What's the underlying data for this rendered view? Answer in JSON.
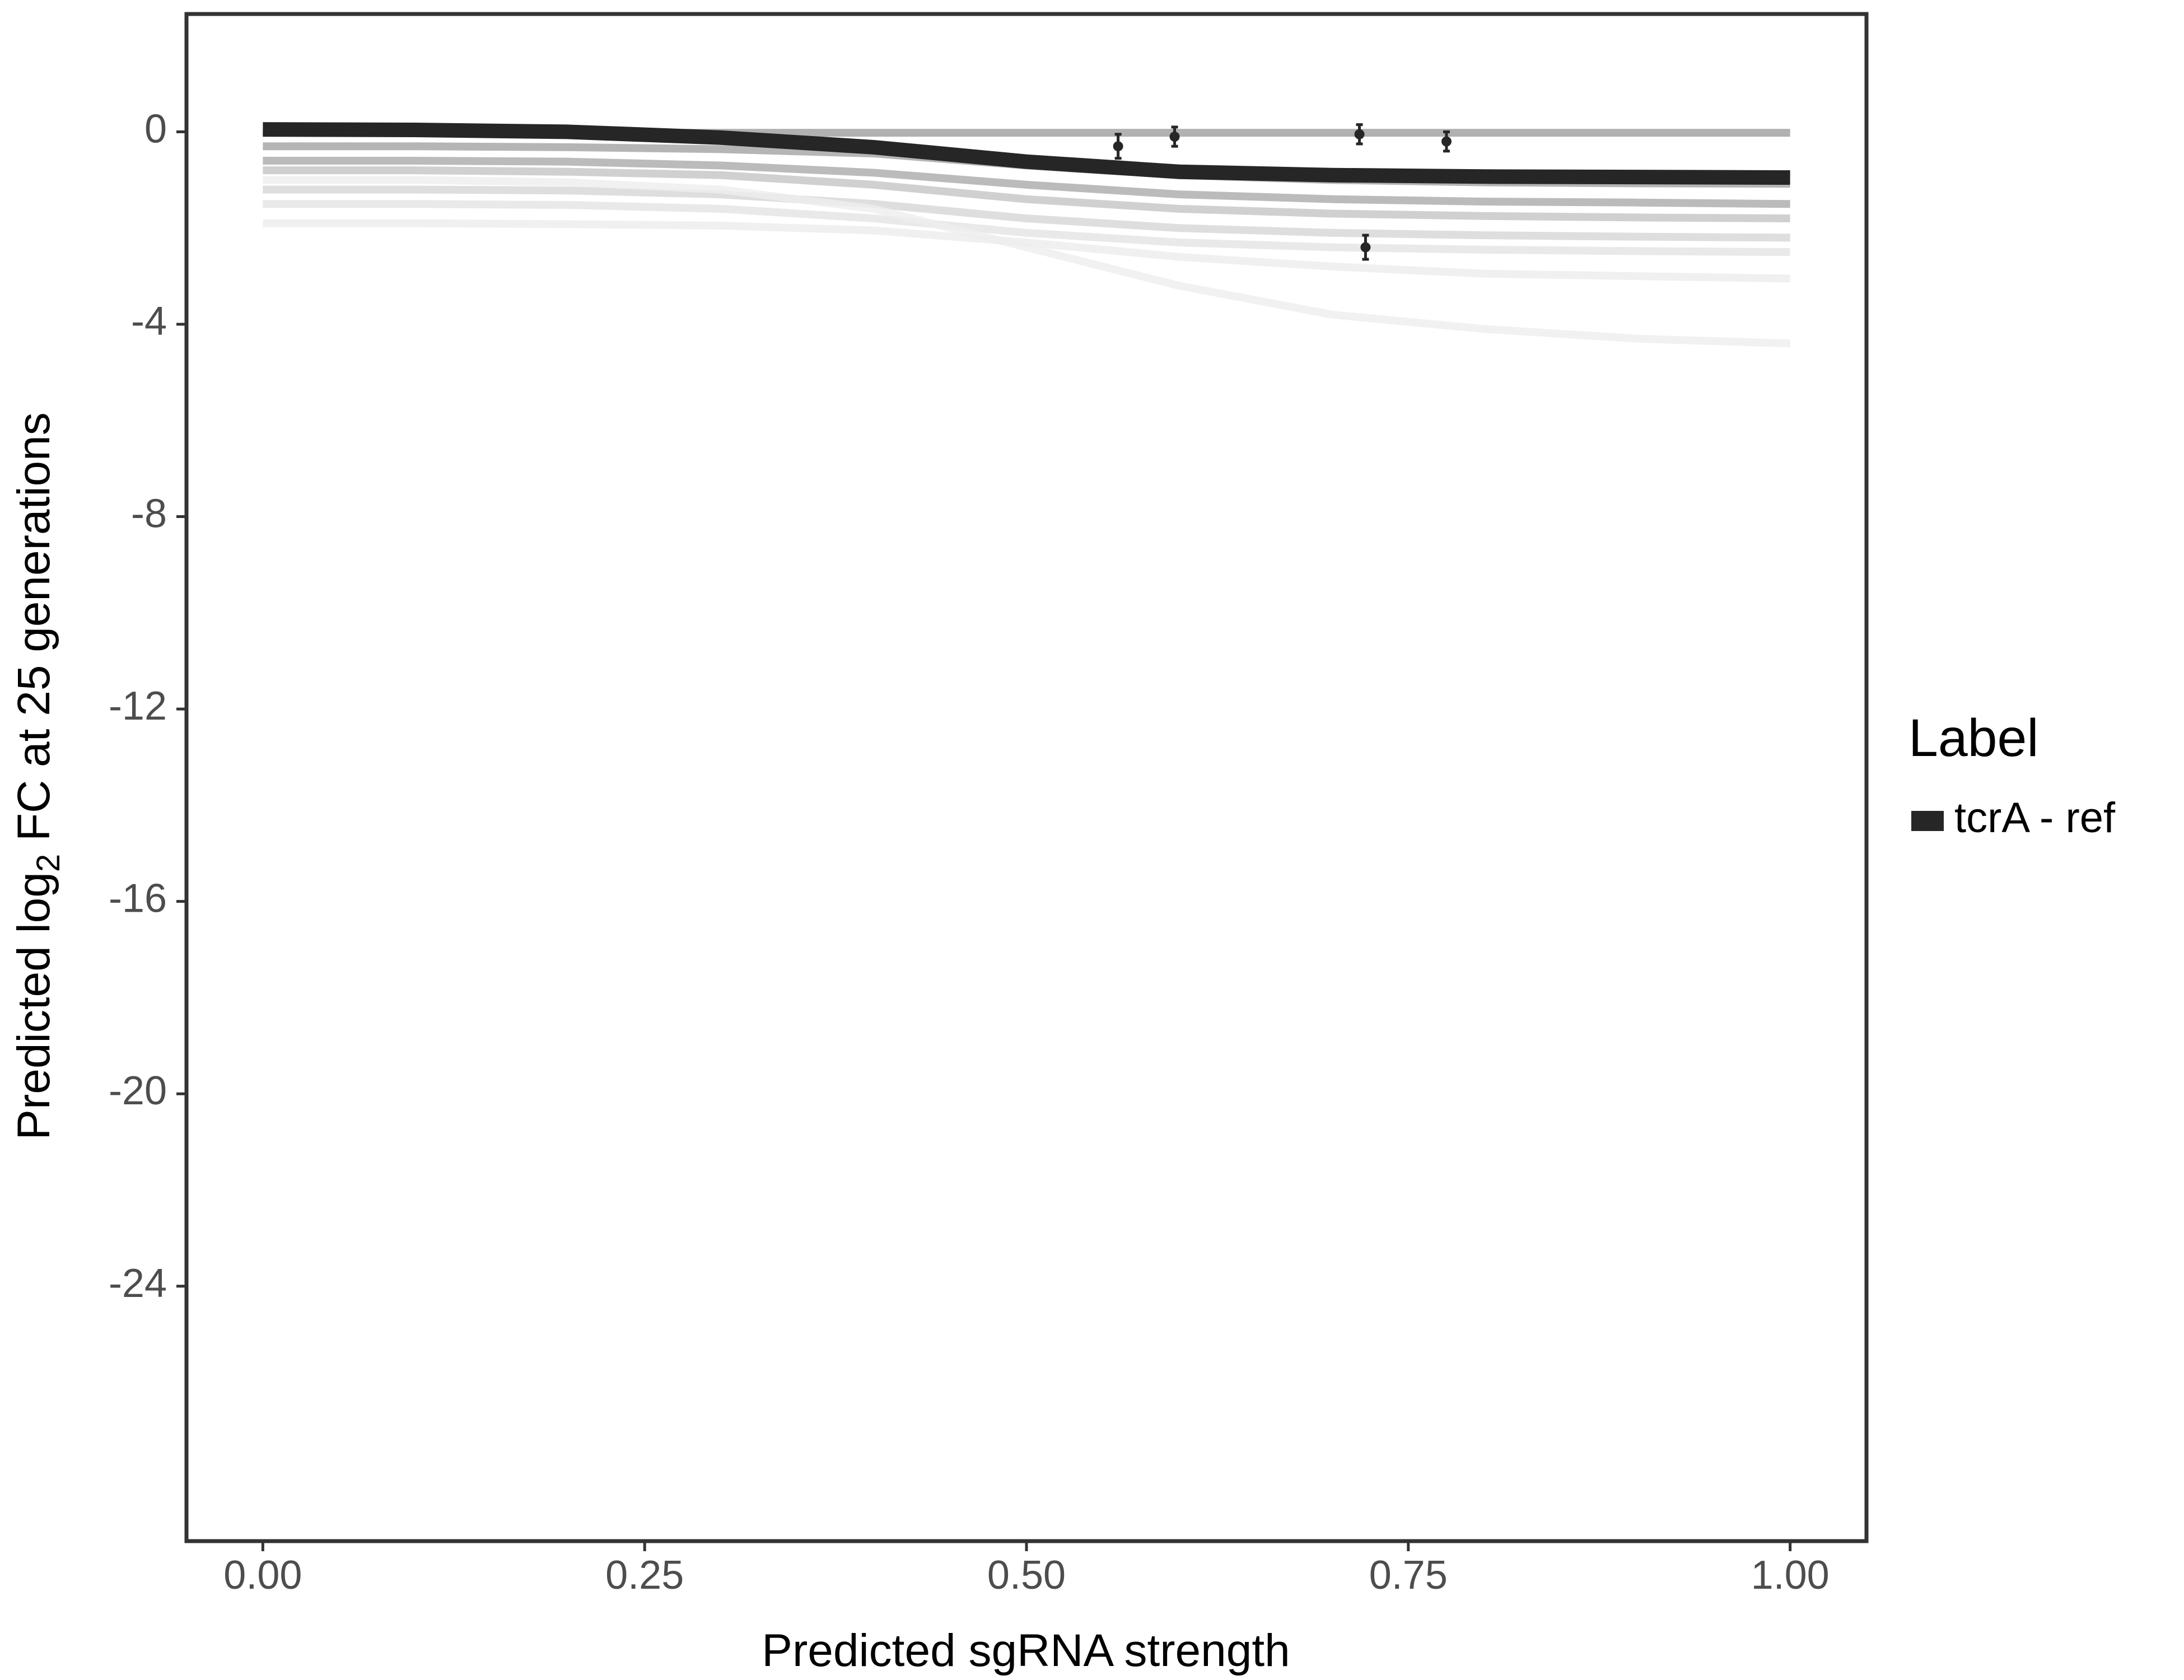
{
  "chart_data": {
    "type": "line",
    "xlabel": "Predicted sgRNA strength",
    "ylabel": [
      "Predicted  log",
      "2",
      " FC at 25 generations"
    ],
    "legend_title": "Label",
    "legend": "right",
    "x": [
      0,
      0.1,
      0.2,
      0.3,
      0.4,
      0.5,
      0.6,
      0.7,
      0.8,
      0.9,
      1.0
    ],
    "xlim": [
      -0.05,
      1.05
    ],
    "ylim": [
      -29.3,
      2.45
    ],
    "xticks": [
      {
        "value": 0,
        "label": "0.00"
      },
      {
        "value": 0.25,
        "label": "0.25"
      },
      {
        "value": 0.5,
        "label": "0.50"
      },
      {
        "value": 0.75,
        "label": "0.75"
      },
      {
        "value": 1,
        "label": "1.00"
      }
    ],
    "yticks": [
      0,
      -4,
      -8,
      -12,
      -16,
      -20,
      -24
    ],
    "series": [
      {
        "color": "#9e9e9e",
        "values": [
          -0.02,
          -0.02,
          -0.02,
          -0.02,
          -0.02,
          -0.02,
          -0.02,
          -0.02,
          -0.02,
          -0.02,
          -0.02
        ]
      },
      {
        "color": "#a3a3a3",
        "values": [
          -0.3,
          -0.3,
          -0.32,
          -0.36,
          -0.45,
          -0.7,
          -0.9,
          -1.0,
          -1.05,
          -1.07,
          -1.08
        ]
      },
      {
        "color": "#aaaaaa",
        "values": [
          -0.6,
          -0.6,
          -0.62,
          -0.7,
          -0.85,
          -1.1,
          -1.3,
          -1.4,
          -1.45,
          -1.47,
          -1.5
        ]
      },
      {
        "color": "#c4c4c4",
        "values": [
          -0.8,
          -0.8,
          -0.83,
          -0.9,
          -1.1,
          -1.4,
          -1.6,
          -1.7,
          -1.75,
          -1.78,
          -1.8
        ]
      },
      {
        "color": "#d6d6d6",
        "values": [
          -1.2,
          -1.2,
          -1.22,
          -1.3,
          -1.5,
          -1.8,
          -2.0,
          -2.1,
          -2.15,
          -2.18,
          -2.2
        ]
      },
      {
        "color": "#e3e3e3",
        "values": [
          -1.5,
          -1.5,
          -1.52,
          -1.6,
          -1.8,
          -2.1,
          -2.3,
          -2.4,
          -2.45,
          -2.48,
          -2.5
        ]
      },
      {
        "color": "#ececec",
        "values": [
          -1.9,
          -1.9,
          -1.92,
          -1.95,
          -2.05,
          -2.3,
          -2.6,
          -2.8,
          -2.95,
          -3.0,
          -3.05
        ]
      },
      {
        "color": "#eeeeee",
        "values": [
          -1.0,
          -1.0,
          -1.05,
          -1.2,
          -1.6,
          -2.4,
          -3.2,
          -3.8,
          -4.1,
          -4.3,
          -4.4
        ]
      },
      {
        "name": "tcrA - ref",
        "color": "#262626",
        "values": [
          0.05,
          0.04,
          0.0,
          -0.12,
          -0.32,
          -0.62,
          -0.83,
          -0.9,
          -0.93,
          -0.94,
          -0.95
        ]
      }
    ],
    "points": {
      "color": "#262626",
      "x": [
        0.56,
        0.597,
        0.718,
        0.775,
        0.722
      ],
      "y": [
        -0.3,
        -0.1,
        -0.05,
        -0.2,
        -2.4
      ],
      "error": [
        0.25,
        0.2,
        0.2,
        0.2,
        0.25
      ]
    }
  }
}
